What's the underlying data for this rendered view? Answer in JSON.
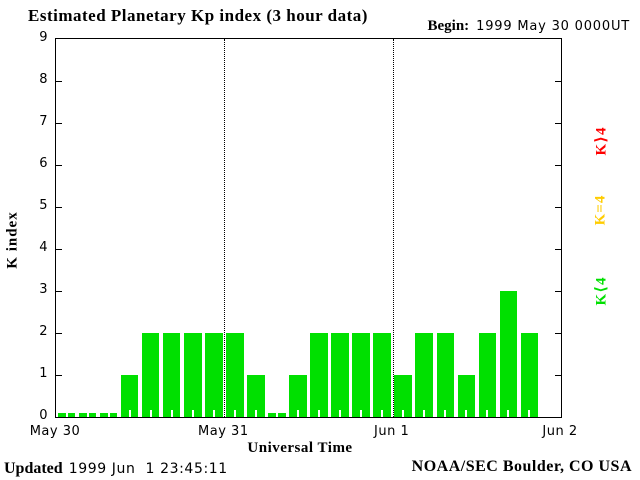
{
  "header": {
    "title": "Estimated Planetary Kp index (3 hour data)",
    "begin_label": "Begin:",
    "begin_value": "1999 May 30 0000UT"
  },
  "footer": {
    "updated_label": "Updated",
    "updated_value": "1999 Jun  1 23:45:11",
    "credit": "NOAA/SEC Boulder, CO USA"
  },
  "chart_data": {
    "type": "bar",
    "title": "Estimated Planetary Kp index (3 hour data)",
    "xlabel": "Universal Time",
    "ylabel": "K index",
    "ylim": [
      0,
      9
    ],
    "yticks": [
      0,
      1,
      2,
      3,
      4,
      5,
      6,
      7,
      8,
      9
    ],
    "x_tick_labels": [
      "May 30",
      "May 31",
      "Jun 1",
      "Jun 2"
    ],
    "x_range_days": 3,
    "hours_per_bar": 3,
    "grid_vlines_at_days": [
      1,
      2
    ],
    "grid": "vertical-dotted-day-boundaries",
    "legend_position": "right-rotated",
    "bar_color": "#00e000",
    "values": [
      0,
      0,
      0,
      1,
      2,
      2,
      2,
      2,
      2,
      1,
      0,
      1,
      2,
      2,
      2,
      2,
      1,
      2,
      2,
      1,
      2,
      3,
      2
    ],
    "legend": [
      {
        "label": "K⟩4",
        "color": "#ff0000"
      },
      {
        "label": "K=4",
        "color": "#ffcc00"
      },
      {
        "label": "K⟨4",
        "color": "#00e000"
      }
    ]
  }
}
